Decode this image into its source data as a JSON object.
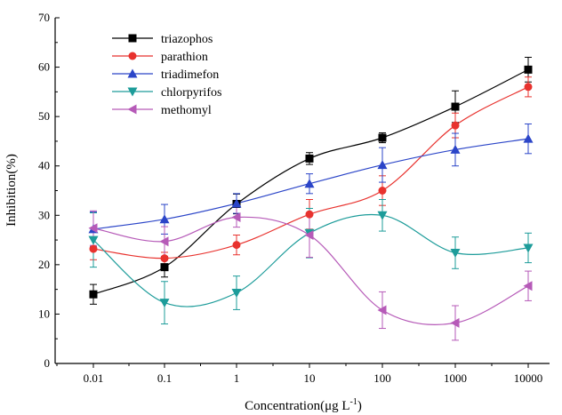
{
  "chart_data": {
    "type": "line",
    "x": [
      "0.01",
      "0.1",
      "1",
      "10",
      "100",
      "1000",
      "10000"
    ],
    "xlabel": "Concentration(μg L",
    "xlabel_unit_sup": "-1",
    "xlabel_close": ")",
    "ylabel": "Inhibition(%)",
    "ylim": [
      0,
      70
    ],
    "yticks": [
      "0",
      "10",
      "20",
      "30",
      "40",
      "50",
      "60",
      "70"
    ],
    "grid": false,
    "legend_position": "top-left",
    "series": [
      {
        "name": "triazophos",
        "color": "#000000",
        "marker": "square",
        "values": [
          14.0,
          19.5,
          32.3,
          41.5,
          45.7,
          52.0,
          59.5
        ],
        "errors": [
          2.0,
          2.0,
          2.0,
          1.2,
          1.0,
          3.2,
          2.5
        ]
      },
      {
        "name": "parathion",
        "color": "#e8322e",
        "marker": "circle",
        "values": [
          23.2,
          21.3,
          24.0,
          30.2,
          35.0,
          48.2,
          56.0
        ],
        "errors": [
          2.2,
          1.2,
          2.0,
          3.0,
          3.0,
          2.5,
          2.0
        ]
      },
      {
        "name": "triadimefon",
        "color": "#2b45c8",
        "marker": "triangle-up",
        "values": [
          27.2,
          29.2,
          32.4,
          36.4,
          40.2,
          43.3,
          45.5
        ],
        "errors": [
          3.5,
          3.0,
          2.0,
          2.0,
          3.5,
          3.3,
          3.0
        ]
      },
      {
        "name": "chlorpyrifos",
        "color": "#1d9c9a",
        "marker": "triangle-down",
        "values": [
          25.0,
          12.3,
          14.3,
          26.4,
          30.0,
          22.4,
          23.4
        ],
        "errors": [
          5.5,
          4.3,
          3.4,
          5.0,
          3.2,
          3.2,
          3.0
        ]
      },
      {
        "name": "methomyl",
        "color": "#b65ab8",
        "marker": "triangle-left",
        "values": [
          27.4,
          24.7,
          29.6,
          26.0,
          10.8,
          8.2,
          15.7
        ],
        "errors": [
          3.5,
          3.0,
          2.0,
          4.5,
          3.7,
          3.5,
          3.0
        ]
      }
    ]
  }
}
